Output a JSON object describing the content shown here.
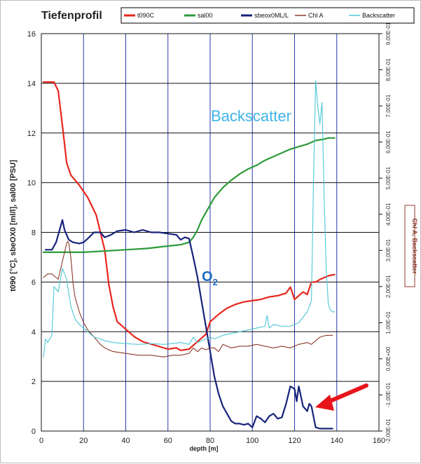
{
  "chart_data": {
    "type": "line",
    "title": "Tiefenprofil",
    "xlabel": "depth [m]",
    "ylabel": "t090 [°C], sbeOX0 [ml/l], sal00 [PSU]",
    "ylabel_right": "Chl A, Backscatter",
    "xlim": [
      0,
      160
    ],
    "ylim": [
      0,
      16
    ],
    "ylim_right": [
      -2.0,
      9.0
    ],
    "x_ticks": [
      0,
      20,
      40,
      60,
      80,
      100,
      120,
      140,
      160
    ],
    "y_ticks": [
      0,
      2,
      4,
      6,
      8,
      10,
      12,
      14,
      16
    ],
    "y_tick_labels": [
      "0",
      "2",
      "4",
      "6",
      "8",
      "10",
      "12",
      "14",
      "16"
    ],
    "x_tick_labels": [
      "0",
      "20",
      "40",
      "60",
      "80",
      "100",
      "120",
      "140",
      "160"
    ],
    "y_right_ticks": [
      -2.0,
      -1.0,
      0.0,
      1.0,
      2.0,
      3.0,
      4.0,
      5.0,
      6.0,
      7.0,
      8.0,
      9.0
    ],
    "y_right_tick_labels": [
      "-2,00E-01",
      "-1,00E-01",
      "0,00E+00",
      "1,00E-01",
      "2,00E-01",
      "3,00E-01",
      "4,00E-01",
      "5,00E-01",
      "6,00E-01",
      "7,00E-01",
      "8,00E-01",
      "9,00E-01"
    ],
    "grid": true,
    "legend_position": "top",
    "series": [
      {
        "name": "t090C",
        "color": "#e8261e",
        "width": 2.2,
        "axis": "left",
        "x": [
          1,
          6,
          8,
          10,
          12,
          14,
          18,
          22,
          26,
          30,
          32,
          34,
          36,
          40,
          44,
          48,
          52,
          56,
          60,
          64,
          66,
          70,
          74,
          78,
          80,
          84,
          88,
          92,
          96,
          100,
          104,
          108,
          112,
          116,
          118,
          120,
          124,
          126,
          128,
          130,
          132,
          136,
          139
        ],
        "y": [
          14.05,
          14.05,
          13.7,
          12.3,
          10.8,
          10.3,
          9.9,
          9.4,
          8.7,
          7.3,
          5.9,
          5.0,
          4.4,
          4.1,
          3.8,
          3.6,
          3.5,
          3.4,
          3.3,
          3.35,
          3.25,
          3.3,
          3.6,
          3.9,
          4.4,
          4.7,
          4.95,
          5.1,
          5.2,
          5.25,
          5.3,
          5.4,
          5.45,
          5.55,
          5.8,
          5.3,
          5.6,
          5.5,
          6.0,
          6.0,
          6.1,
          6.25,
          6.3
        ]
      },
      {
        "name": "sal00",
        "color": "#2d9b3a",
        "width": 2.2,
        "axis": "left",
        "x": [
          1,
          10,
          20,
          30,
          40,
          50,
          60,
          66,
          70,
          72,
          74,
          76,
          78,
          80,
          82,
          86,
          90,
          94,
          98,
          102,
          106,
          110,
          114,
          118,
          122,
          126,
          130,
          134,
          136,
          139
        ],
        "y": [
          7.2,
          7.2,
          7.2,
          7.25,
          7.3,
          7.35,
          7.45,
          7.5,
          7.6,
          7.8,
          8.1,
          8.5,
          8.8,
          9.1,
          9.4,
          9.8,
          10.1,
          10.35,
          10.55,
          10.7,
          10.9,
          11.05,
          11.2,
          11.35,
          11.45,
          11.55,
          11.7,
          11.75,
          11.8,
          11.8
        ]
      },
      {
        "name": "sbeox0ML/L",
        "color": "#17237a",
        "width": 2.2,
        "axis": "left",
        "x": [
          2,
          5,
          7,
          9,
          10,
          11,
          13,
          15,
          18,
          20,
          22,
          25,
          28,
          30,
          33,
          36,
          40,
          44,
          48,
          52,
          56,
          60,
          64,
          66,
          68,
          70,
          72,
          74,
          76,
          78,
          80,
          82,
          84,
          86,
          88,
          90,
          92,
          94,
          96,
          98,
          100,
          102,
          104,
          106,
          108,
          110,
          112,
          114,
          116,
          118,
          120,
          121,
          122,
          124,
          126,
          127,
          128,
          130,
          132,
          135,
          138
        ],
        "y": [
          7.3,
          7.3,
          7.6,
          8.2,
          8.5,
          8.1,
          7.7,
          7.6,
          7.55,
          7.6,
          7.75,
          8.0,
          8.0,
          7.8,
          7.9,
          8.05,
          8.1,
          8.0,
          8.1,
          8.0,
          8.0,
          7.95,
          7.9,
          7.7,
          7.8,
          7.75,
          7.0,
          6.2,
          5.2,
          4.2,
          3.2,
          2.2,
          1.5,
          1.0,
          0.7,
          0.4,
          0.3,
          0.3,
          0.25,
          0.3,
          0.15,
          0.6,
          0.5,
          0.35,
          0.6,
          0.7,
          0.5,
          0.55,
          1.1,
          1.8,
          1.7,
          1.2,
          1.8,
          1.0,
          0.8,
          1.1,
          1.0,
          0.15,
          0.1,
          0.1,
          0.1
        ]
      },
      {
        "name": "Chl A",
        "color": "#8b3a2a",
        "width": 1.1,
        "axis": "right",
        "x": [
          1,
          3,
          5,
          8,
          10,
          12,
          12.5,
          13,
          14,
          15,
          16,
          18,
          20,
          22,
          25,
          28,
          30,
          34,
          40,
          46,
          52,
          58,
          62,
          66,
          70,
          72,
          74,
          76,
          78,
          80,
          82,
          84,
          86,
          90,
          94,
          98,
          102,
          106,
          110,
          114,
          118,
          122,
          126,
          128,
          130,
          132,
          135,
          138
        ],
        "y": [
          2.25,
          2.35,
          2.35,
          2.2,
          2.7,
          3.2,
          3.25,
          3.2,
          2.8,
          2.1,
          1.7,
          1.3,
          1.0,
          0.8,
          0.6,
          0.4,
          0.3,
          0.2,
          0.15,
          0.1,
          0.1,
          0.05,
          0.1,
          0.1,
          0.15,
          0.3,
          0.2,
          0.3,
          0.25,
          0.3,
          0.3,
          0.2,
          0.4,
          0.3,
          0.35,
          0.35,
          0.4,
          0.35,
          0.3,
          0.35,
          0.3,
          0.4,
          0.45,
          0.4,
          0.5,
          0.6,
          0.65,
          0.65
        ]
      },
      {
        "name": "Backscatter",
        "color": "#4ec8d6",
        "width": 1.1,
        "axis": "right",
        "x": [
          1,
          2,
          3,
          5,
          6,
          8,
          10,
          11,
          12,
          13,
          14,
          16,
          18,
          20,
          22,
          25,
          28,
          30,
          34,
          40,
          46,
          52,
          58,
          62,
          66,
          70,
          72,
          74,
          76,
          78,
          80,
          82,
          84,
          86,
          90,
          94,
          98,
          102,
          106,
          107,
          108,
          110,
          114,
          118,
          122,
          126,
          128,
          129,
          130,
          131,
          132,
          133,
          134,
          135,
          136,
          137,
          138,
          139
        ],
        "y": [
          0.05,
          0.55,
          0.45,
          0.65,
          2.0,
          1.85,
          2.5,
          2.35,
          2.2,
          1.8,
          1.45,
          1.1,
          0.95,
          0.85,
          0.75,
          0.6,
          0.55,
          0.5,
          0.45,
          0.42,
          0.4,
          0.42,
          0.4,
          0.42,
          0.45,
          0.4,
          0.6,
          0.45,
          0.5,
          0.55,
          0.6,
          0.55,
          0.6,
          0.65,
          0.7,
          0.75,
          0.8,
          0.85,
          0.9,
          1.2,
          0.85,
          0.95,
          0.9,
          0.9,
          1.0,
          1.3,
          1.6,
          5.0,
          7.7,
          7.0,
          6.5,
          7.1,
          4.5,
          2.5,
          1.5,
          1.35,
          1.3,
          1.3
        ]
      }
    ],
    "annotations": [
      {
        "text": "Backscatter",
        "color": "#3fb4e6"
      },
      {
        "text": "O",
        "sub": "2",
        "color": "#1c69c1"
      }
    ]
  }
}
